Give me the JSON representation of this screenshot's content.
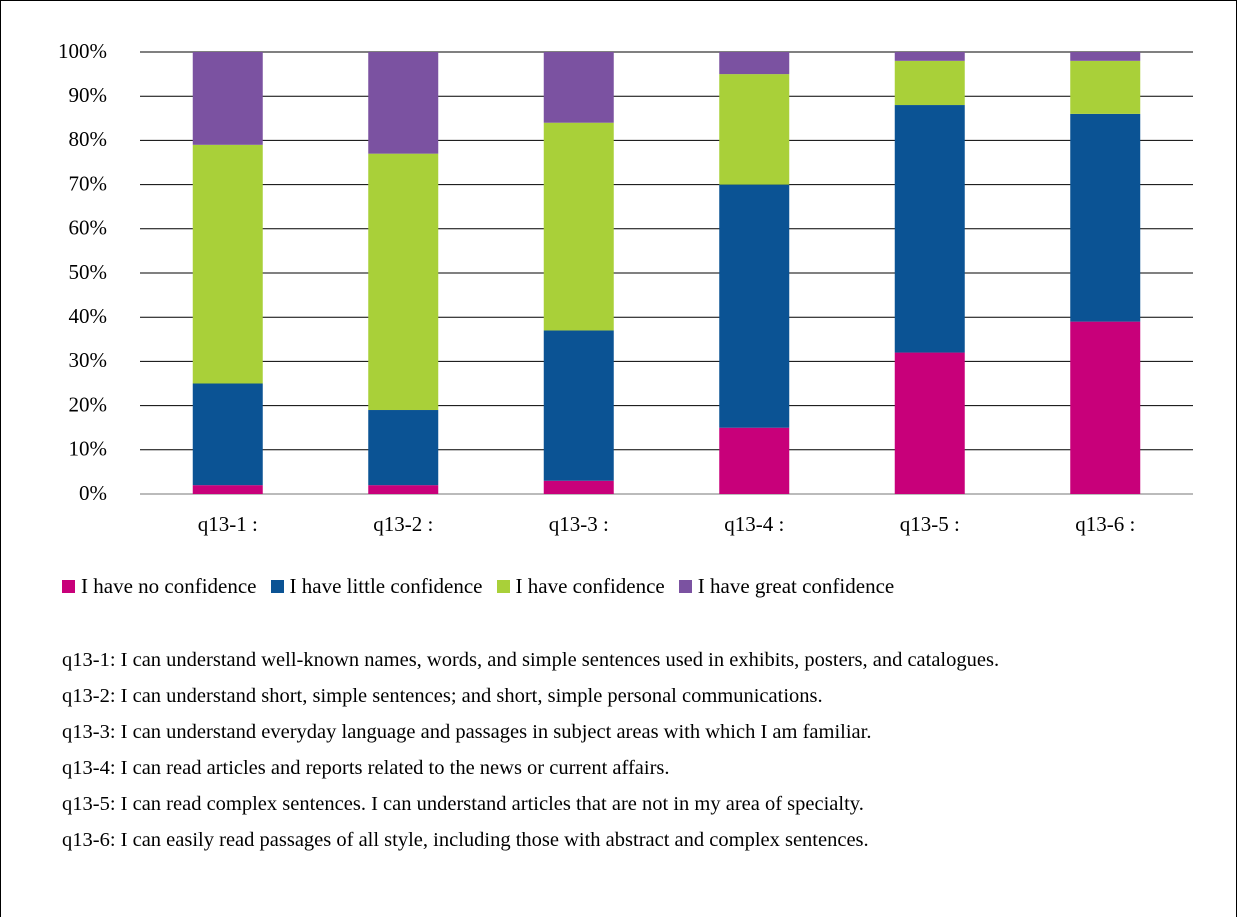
{
  "chart_data": {
    "type": "stacked_bar",
    "categories": [
      "q13-1 :",
      "q13-2 :",
      "q13-3 :",
      "q13-4 :",
      "q13-5 :",
      "q13-6 :"
    ],
    "series": [
      {
        "name": "I have no confidence",
        "color": "#c8007a",
        "values": [
          2,
          2,
          3,
          15,
          32,
          39
        ]
      },
      {
        "name": "I have little confidence",
        "color": "#0b5394",
        "values": [
          23,
          17,
          34,
          55,
          56,
          47
        ]
      },
      {
        "name": "I have confidence",
        "color": "#a9d039",
        "values": [
          54,
          58,
          47,
          25,
          10,
          12
        ]
      },
      {
        "name": "I have great confidence",
        "color": "#7b52a1",
        "values": [
          21,
          23,
          16,
          5,
          2,
          2
        ]
      }
    ],
    "ylim": [
      0,
      100
    ],
    "yticks": [
      {
        "value": 0,
        "label": "0%"
      },
      {
        "value": 10,
        "label": "10%"
      },
      {
        "value": 20,
        "label": "20%"
      },
      {
        "value": 30,
        "label": "30%"
      },
      {
        "value": 40,
        "label": "40%"
      },
      {
        "value": 50,
        "label": "50%"
      },
      {
        "value": 60,
        "label": "60%"
      },
      {
        "value": 70,
        "label": "70%"
      },
      {
        "value": 80,
        "label": "80%"
      },
      {
        "value": 90,
        "label": "90%"
      },
      {
        "value": 100,
        "label": "100%"
      }
    ],
    "grid": true,
    "legend": "bottom",
    "notes": [
      "q13-1: I can understand well-known names, words, and simple sentences used in exhibits, posters, and catalogues.",
      "q13-2: I can understand short, simple sentences; and short, simple personal communications.",
      "q13-3: I can understand everyday language and passages in subject areas with which I am familiar.",
      "q13-4: I can read articles and reports related to the news or current affairs.",
      "q13-5: I can read complex sentences. I can understand articles that are not in my area of specialty.",
      "q13-6: I can easily read passages of all style, including those with abstract and complex sentences."
    ]
  }
}
